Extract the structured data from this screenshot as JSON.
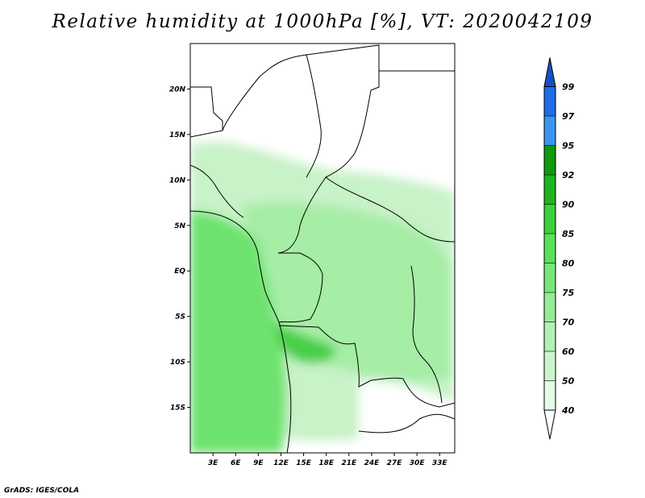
{
  "title": "Relative humidity at 1000hPa [%], VT: 2020042109",
  "credit": "GrADS: IGES/COLA",
  "map": {
    "lon_range": [
      0,
      35
    ],
    "lat_range": [
      -20,
      25
    ],
    "lat_ticks": [
      {
        "value": 20,
        "label": "20N"
      },
      {
        "value": 15,
        "label": "15N"
      },
      {
        "value": 10,
        "label": "10N"
      },
      {
        "value": 5,
        "label": "5N"
      },
      {
        "value": 0,
        "label": "EQ"
      },
      {
        "value": -5,
        "label": "5S"
      },
      {
        "value": -10,
        "label": "10S"
      },
      {
        "value": -15,
        "label": "15S"
      }
    ],
    "lon_ticks": [
      {
        "value": 3,
        "label": "3E"
      },
      {
        "value": 6,
        "label": "6E"
      },
      {
        "value": 9,
        "label": "9E"
      },
      {
        "value": 12,
        "label": "12E"
      },
      {
        "value": 15,
        "label": "15E"
      },
      {
        "value": 18,
        "label": "18E"
      },
      {
        "value": 21,
        "label": "21E"
      },
      {
        "value": 24,
        "label": "24E"
      },
      {
        "value": 27,
        "label": "27E"
      },
      {
        "value": 30,
        "label": "30E"
      },
      {
        "value": 33,
        "label": "33E"
      }
    ]
  },
  "colorbar": {
    "levels": [
      {
        "label": "40",
        "color": "#e6fbe6"
      },
      {
        "label": "50",
        "color": "#cdf5cd"
      },
      {
        "label": "60",
        "color": "#b4f0b4"
      },
      {
        "label": "70",
        "color": "#96eb96"
      },
      {
        "label": "75",
        "color": "#78e678"
      },
      {
        "label": "80",
        "color": "#5ae15a"
      },
      {
        "label": "85",
        "color": "#3cd23c"
      },
      {
        "label": "90",
        "color": "#1eb41e"
      },
      {
        "label": "92",
        "color": "#0f9a0f"
      },
      {
        "label": "95",
        "color": "#3c96f0"
      },
      {
        "label": "97",
        "color": "#1e6ee6"
      },
      {
        "label": "99",
        "color": "#1450c8"
      }
    ],
    "below_color": "#ffffff",
    "above_color": "#1450c8"
  }
}
